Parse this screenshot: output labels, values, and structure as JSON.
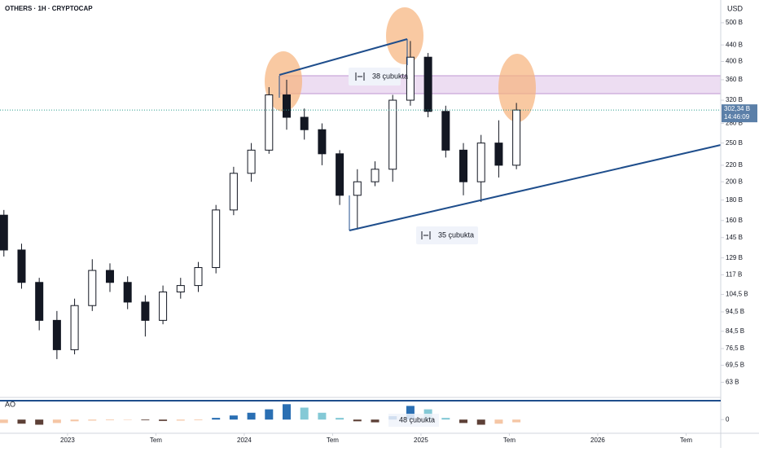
{
  "chart_data": {
    "type": "candlestick",
    "title": "OTHERS · 1H · CRYPTOCAP",
    "currency": "USD",
    "log_scale": true,
    "ylim": [
      58,
      570
    ],
    "yticks": [
      {
        "value": 500,
        "label": "500 B"
      },
      {
        "value": 440,
        "label": "440 B"
      },
      {
        "value": 400,
        "label": "400 B"
      },
      {
        "value": 360,
        "label": "360 B"
      },
      {
        "value": 320,
        "label": "320 B"
      },
      {
        "value": 280,
        "label": "280 B"
      },
      {
        "value": 250,
        "label": "250 B"
      },
      {
        "value": 220,
        "label": "220 B"
      },
      {
        "value": 200,
        "label": "200 B"
      },
      {
        "value": 180,
        "label": "180 B"
      },
      {
        "value": 160,
        "label": "160 B"
      },
      {
        "value": 145,
        "label": "145 B"
      },
      {
        "value": 129,
        "label": "129 B"
      },
      {
        "value": 117,
        "label": "117 B"
      },
      {
        "value": 104.5,
        "label": "104,5 B"
      },
      {
        "value": 94.5,
        "label": "94,5 B"
      },
      {
        "value": 84.5,
        "label": "84,5 B"
      },
      {
        "value": 76.5,
        "label": "76,5 B"
      },
      {
        "value": 69.5,
        "label": "69,5 B"
      },
      {
        "value": 63,
        "label": "63 B"
      }
    ],
    "xlim": [
      2022.618,
      2026.696
    ],
    "xticks": [
      {
        "value": 2023,
        "label": "2023"
      },
      {
        "value": 2023.5,
        "label": "Tem"
      },
      {
        "value": 2024,
        "label": "2024"
      },
      {
        "value": 2024.5,
        "label": "Tem"
      },
      {
        "value": 2025,
        "label": "2025"
      },
      {
        "value": 2025.5,
        "label": "Tem"
      },
      {
        "value": 2026,
        "label": "2026"
      },
      {
        "value": 2026.5,
        "label": "Tem"
      }
    ],
    "x": [
      2022.64,
      2022.74,
      2022.84,
      2022.94,
      2023.04,
      2023.14,
      2023.24,
      2023.34,
      2023.44,
      2023.54,
      2023.64,
      2023.74,
      2023.84,
      2023.94,
      2024.04,
      2024.14,
      2024.24,
      2024.34,
      2024.44,
      2024.54,
      2024.64,
      2024.74,
      2024.84,
      2024.94,
      2025.04,
      2025.14,
      2025.24,
      2025.34,
      2025.44,
      2025.54
    ],
    "open": [
      165,
      135,
      112,
      90,
      76,
      98,
      120,
      112,
      100,
      90,
      106,
      110,
      122,
      170,
      210,
      240,
      330,
      290,
      270,
      235,
      185,
      200,
      215,
      320,
      410,
      300,
      240,
      200,
      250,
      220
    ],
    "high": [
      170,
      140,
      115,
      95,
      102,
      128,
      125,
      116,
      104,
      110,
      115,
      126,
      175,
      218,
      250,
      345,
      360,
      305,
      280,
      240,
      215,
      225,
      330,
      450,
      420,
      310,
      250,
      262,
      285,
      315
    ],
    "low": [
      130,
      108,
      85,
      72,
      74,
      95,
      106,
      96,
      82,
      88,
      102,
      106,
      118,
      165,
      200,
      235,
      270,
      255,
      220,
      175,
      152,
      195,
      200,
      310,
      290,
      230,
      185,
      178,
      205,
      215
    ],
    "close": [
      135,
      112,
      90,
      76,
      98,
      120,
      112,
      100,
      90,
      106,
      110,
      122,
      170,
      210,
      240,
      330,
      290,
      270,
      235,
      185,
      200,
      215,
      320,
      410,
      300,
      240,
      200,
      250,
      220,
      302.34
    ],
    "colors": {
      "up": "#ffffff",
      "down": "#131722",
      "outline": "#131722"
    },
    "last_price": {
      "value": 302.34,
      "label": "302,34 B",
      "countdown": "14:46:09"
    },
    "annotations": [
      "38 çubukta",
      "35 çubukta",
      "48 çubukta"
    ],
    "indicator": {
      "name": "AO",
      "ylim": [
        -40,
        60
      ],
      "yticks": [
        0
      ],
      "values": [
        -10,
        -12,
        -15,
        -10,
        -5,
        -3,
        -2,
        -1,
        -2,
        -4,
        -3,
        -2,
        5,
        12,
        20,
        30,
        45,
        35,
        20,
        5,
        -5,
        -8,
        10,
        40,
        30,
        5,
        -10,
        -15,
        -12,
        -8
      ],
      "colors": {
        "pos_up": "#2a6fb3",
        "pos_down": "#84c9d6",
        "neg_up": "#f5c6a5",
        "neg_down": "#5d4037"
      }
    }
  }
}
